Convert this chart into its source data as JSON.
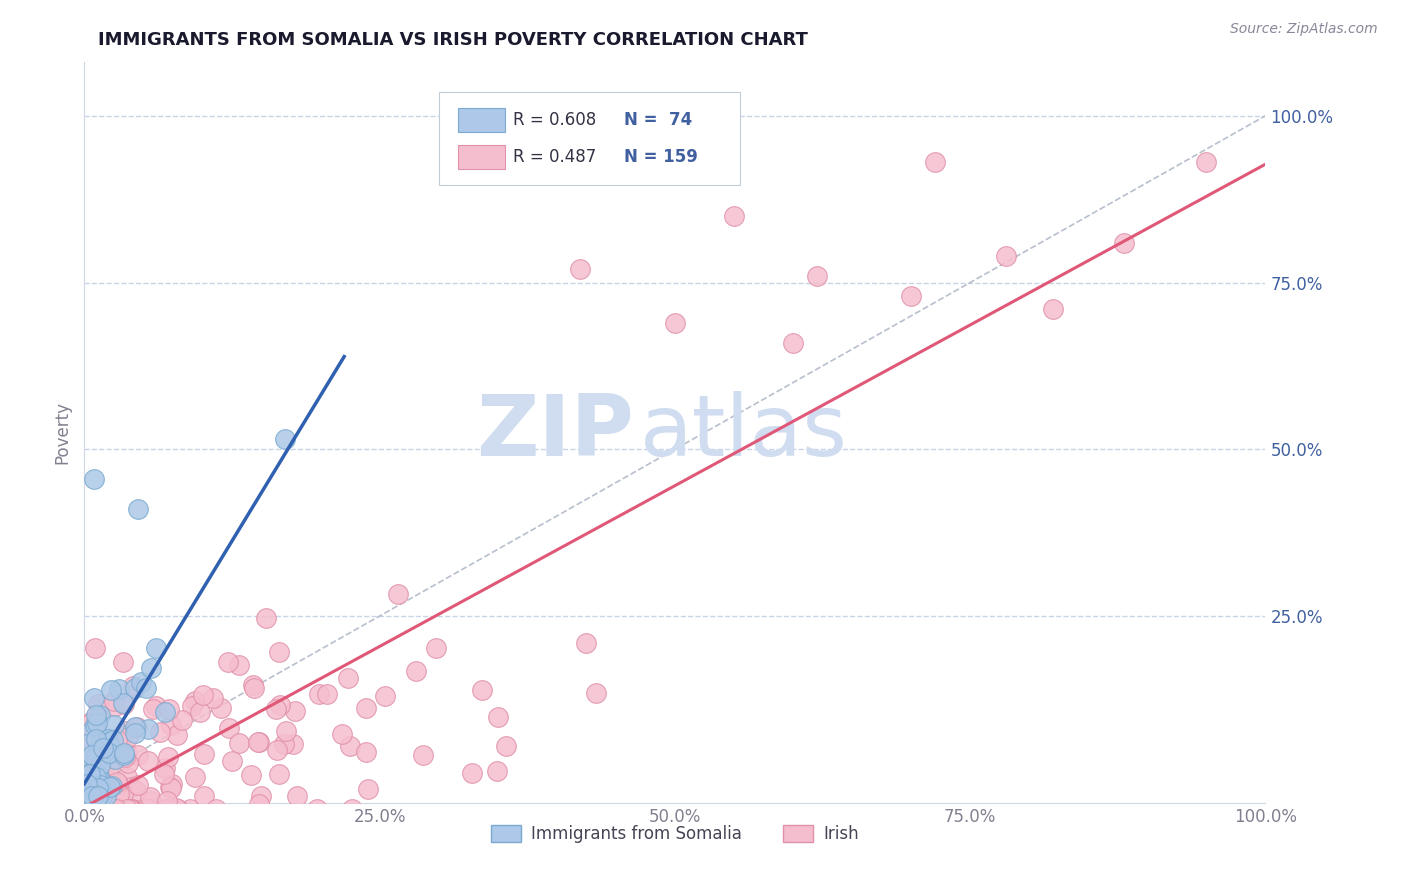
{
  "title": "IMMIGRANTS FROM SOMALIA VS IRISH POVERTY CORRELATION CHART",
  "source": "Source: ZipAtlas.com",
  "ylabel": "Poverty",
  "xlim": [
    0.0,
    1.0
  ],
  "ylim": [
    -0.03,
    1.08
  ],
  "x_ticks": [
    0.0,
    0.25,
    0.5,
    0.75,
    1.0
  ],
  "x_tick_labels": [
    "0.0%",
    "25.0%",
    "50.0%",
    "75.0%",
    "100.0%"
  ],
  "y_ticks": [
    0.0,
    0.25,
    0.5,
    0.75,
    1.0
  ],
  "y_tick_labels_right": [
    "",
    "25.0%",
    "50.0%",
    "75.0%",
    "100.0%"
  ],
  "series1_color": "#adc8e8",
  "series1_edge": "#7aaacf",
  "series2_color": "#f5bece",
  "series2_edge": "#e090a8",
  "trend1_color": "#3060b0",
  "trend2_color": "#e05878",
  "ref_line_color": "#b0b8c8",
  "watermark_zip": "ZIP",
  "watermark_atlas": "atlas",
  "watermark_color": "#d0ddf0",
  "series1_label": "Immigrants from Somalia",
  "series2_label": "Irish",
  "title_color": "#1a1a2e",
  "axis_label_color": "#4060a0",
  "tick_color": "#808090",
  "grid_color": "#c8d4e8",
  "background_color": "#ffffff",
  "legend_box_color": "#f0f4f8",
  "legend_border_color": "#c0ccd8"
}
